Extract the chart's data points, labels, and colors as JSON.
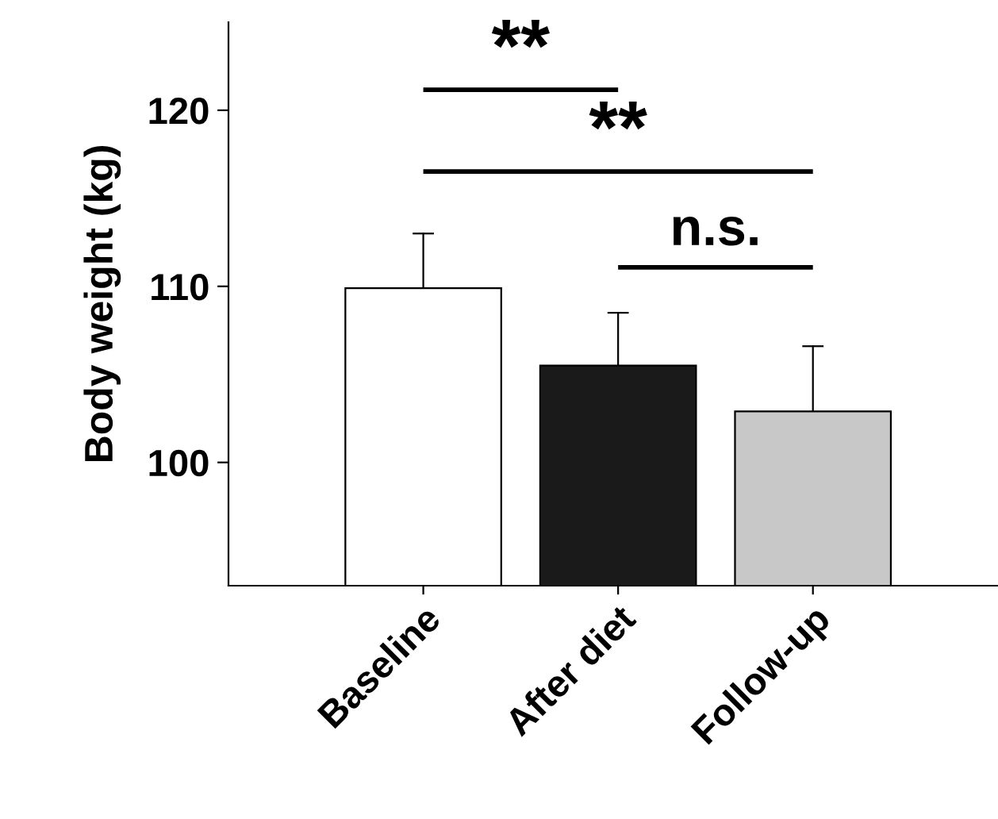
{
  "chart_data": {
    "type": "bar",
    "ylabel": "Body weight (kg)",
    "categories": [
      "Baseline",
      "After diet",
      "Follow-up"
    ],
    "values": [
      109.9,
      105.5,
      102.9
    ],
    "colors": [
      "#ffffff",
      "#1a1a1a",
      "#c8c8c8"
    ],
    "errors": [
      [
        109.9,
        113.0
      ],
      [
        105.5,
        108.5
      ],
      [
        102.9,
        106.6
      ]
    ],
    "ylim": [
      93,
      125
    ],
    "yticks": [
      100,
      110,
      120
    ],
    "annotations": [
      "**",
      "**",
      "n.s."
    ],
    "grid": false,
    "legend": false
  }
}
